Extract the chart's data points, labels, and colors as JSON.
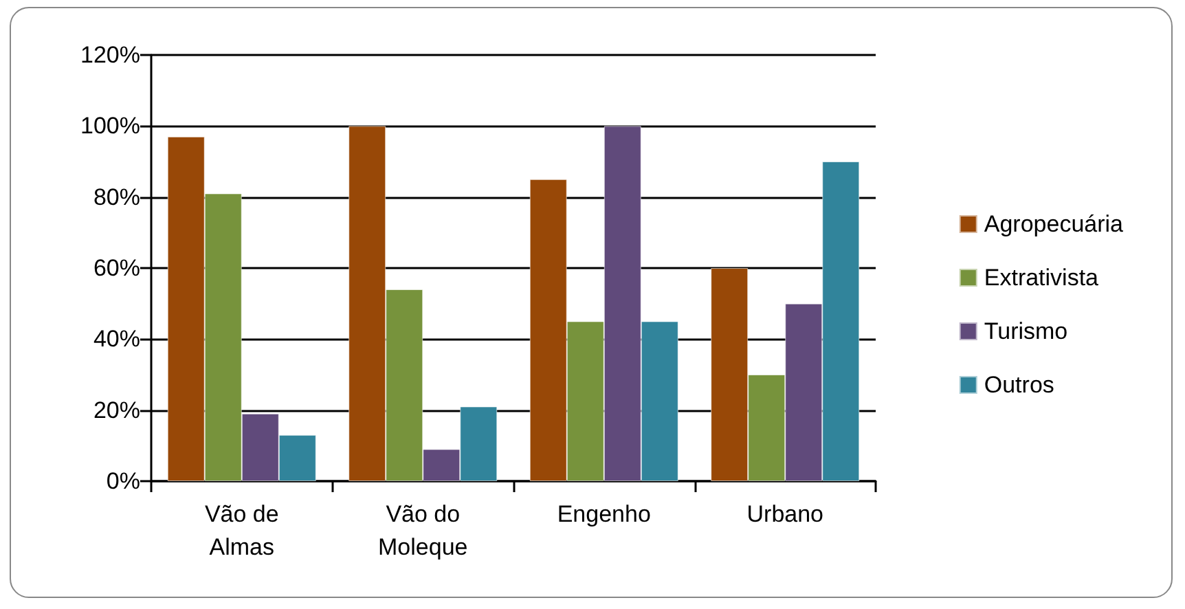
{
  "chart_data": {
    "type": "bar",
    "categories": [
      "Vão de\nAlmas",
      "Vão do\nMoleque",
      "Engenho",
      "Urbano"
    ],
    "series": [
      {
        "name": "Agropecuária",
        "color": "#984807",
        "values": [
          97,
          100,
          85,
          60
        ]
      },
      {
        "name": "Extrativista",
        "color": "#77933c",
        "values": [
          81,
          54,
          45,
          30
        ]
      },
      {
        "name": "Turismo",
        "color": "#604a7b",
        "values": [
          19,
          9,
          100,
          50
        ]
      },
      {
        "name": "Outros",
        "color": "#31849b",
        "values": [
          13,
          21,
          45,
          90
        ]
      }
    ],
    "ylim": [
      0,
      120
    ],
    "yticks": [
      {
        "value": 0,
        "label": "0%"
      },
      {
        "value": 20,
        "label": "20%"
      },
      {
        "value": 40,
        "label": "40%"
      },
      {
        "value": 60,
        "label": "60%"
      },
      {
        "value": 80,
        "label": "80%"
      },
      {
        "value": 100,
        "label": "100%"
      },
      {
        "value": 120,
        "label": "120%"
      }
    ],
    "grid": "y",
    "legend": "right"
  }
}
